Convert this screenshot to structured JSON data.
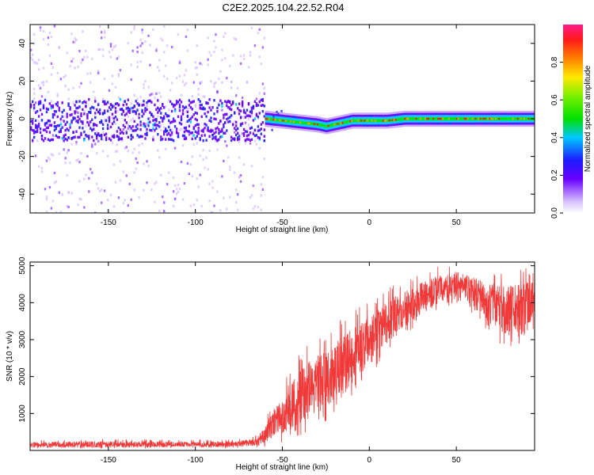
{
  "figure": {
    "title": "C2E2.2025.104.22.52.R04"
  },
  "colors": {
    "snr_line": "#f03a3a",
    "spectrogram_ridge": [
      "#ff1a1a",
      "#ffa000",
      "#00e000",
      "#00c8ff",
      "#2020ff",
      "#6a00ff",
      "#c8a8ff"
    ]
  },
  "chart_data": [
    {
      "type": "heatmap",
      "title": "",
      "xlabel": "Height of straight line (km)",
      "ylabel": "Frequency (Hz)",
      "xlim": [
        -195,
        95
      ],
      "ylim": [
        -50,
        50
      ],
      "xticks": [
        -150,
        -100,
        -50,
        0,
        50
      ],
      "yticks": [
        -40,
        -20,
        0,
        20,
        40
      ],
      "ridge_center": {
        "x": [
          -195,
          -60,
          -50,
          -40,
          -30,
          -25,
          -20,
          -10,
          0,
          10,
          20,
          40,
          60,
          95
        ],
        "y": [
          0,
          0,
          -1,
          -2,
          -3,
          -4,
          -3,
          -1,
          -1,
          -1,
          0,
          0,
          0,
          0
        ]
      },
      "colorbar": {
        "label": "Normalized spectral amplitude",
        "range": [
          0.0,
          1.0
        ],
        "ticks": [
          "0.0",
          "0.2",
          "0.4",
          "0.6",
          "0.8"
        ],
        "tick_values": [
          0.0,
          0.2,
          0.4,
          0.6,
          0.8
        ]
      }
    },
    {
      "type": "line",
      "title": "",
      "xlabel": "Height of straight line (km)",
      "ylabel": "SNR (10 * v/v)",
      "xlim": [
        -195,
        95
      ],
      "ylim": [
        0,
        5100
      ],
      "xticks": [
        -150,
        -100,
        -50,
        0,
        50
      ],
      "yticks": [
        1000,
        2000,
        3000,
        4000,
        5000
      ],
      "series": [
        {
          "x": [
            -195,
            -150,
            -100,
            -75,
            -65,
            -60,
            -55,
            -50,
            -45,
            -40,
            -35,
            -30,
            -25,
            -20,
            -15,
            -10,
            -5,
            0,
            5,
            10,
            15,
            20,
            25,
            30,
            35,
            40,
            45,
            50,
            55,
            60,
            65,
            70,
            75,
            80,
            85,
            90,
            95
          ],
          "y": [
            150,
            160,
            160,
            170,
            250,
            420,
            750,
            1050,
            1250,
            1400,
            1600,
            1800,
            1900,
            2100,
            2350,
            2600,
            2800,
            3000,
            3200,
            3500,
            3700,
            3850,
            3950,
            4100,
            4250,
            4350,
            4450,
            4500,
            4400,
            4300,
            4200,
            4100,
            3950,
            3850,
            3900,
            3950,
            4000
          ],
          "lower": [
            50,
            60,
            70,
            60,
            80,
            100,
            150,
            200,
            300,
            400,
            500,
            700,
            800,
            1000,
            1200,
            1500,
            1800,
            2000,
            2300,
            2600,
            2900,
            3100,
            3300,
            3500,
            3700,
            3800,
            3900,
            3950,
            3800,
            3600,
            3400,
            3100,
            2900,
            2700,
            2800,
            2900,
            3000
          ],
          "upper": [
            280,
            300,
            290,
            300,
            400,
            800,
            1400,
            1900,
            2300,
            2600,
            2900,
            3100,
            3200,
            3400,
            3600,
            3800,
            3900,
            4000,
            4200,
            4400,
            4500,
            4600,
            4700,
            4850,
            4950,
            5000,
            5050,
            5100,
            5000,
            4950,
            4900,
            4850,
            4800,
            4850,
            4900,
            4950,
            4900
          ]
        }
      ]
    }
  ]
}
